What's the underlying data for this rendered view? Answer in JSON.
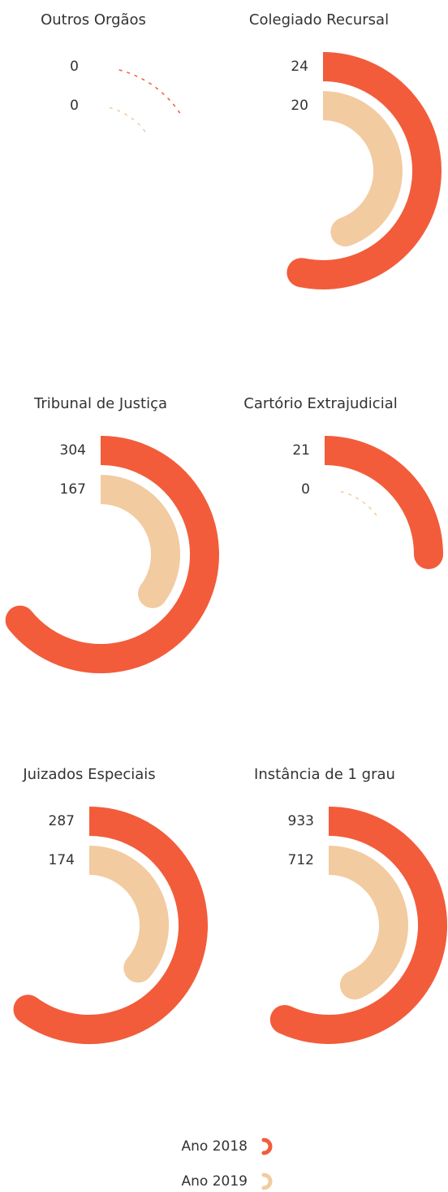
{
  "legend": {
    "items": [
      {
        "name": "Ano 2018",
        "color": "#f25c3b"
      },
      {
        "name": "Ano 2019",
        "color": "#f2cba0"
      }
    ]
  },
  "chart_data": [
    {
      "type": "radial_bar",
      "title": "Outros Orgãos",
      "values": [
        0,
        0
      ],
      "xlim": [
        0,
        1
      ]
    },
    {
      "type": "radial_bar",
      "title": "Colegiado Recursal",
      "values": [
        24,
        20
      ],
      "xlim": [
        0,
        45
      ]
    },
    {
      "type": "radial_bar",
      "title": "Tribunal de Justiça",
      "values": [
        304,
        167
      ],
      "xlim": [
        0,
        474
      ]
    },
    {
      "type": "radial_bar",
      "title": "Cartório Extrajudicial",
      "values": [
        21,
        0
      ],
      "xlim": [
        0,
        84
      ]
    },
    {
      "type": "radial_bar",
      "title": "Juizados Especiais",
      "values": [
        287,
        174
      ],
      "xlim": [
        0,
        478
      ]
    },
    {
      "type": "radial_bar",
      "title": "Instância de 1 grau",
      "values": [
        933,
        712
      ],
      "xlim": [
        0,
        1638
      ]
    }
  ]
}
